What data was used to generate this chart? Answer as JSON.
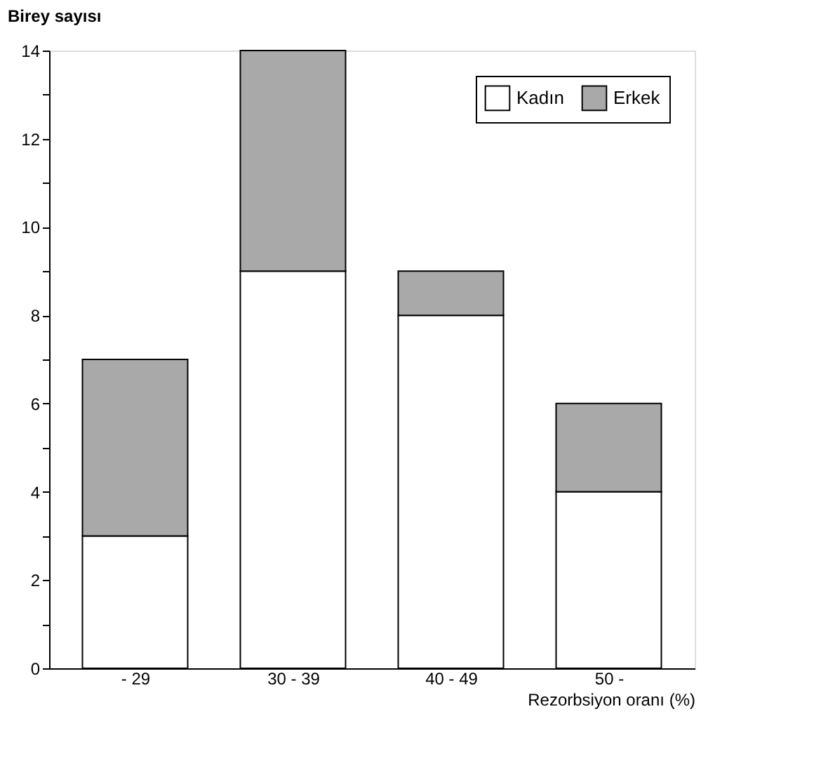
{
  "chart_data": {
    "type": "bar",
    "stacked": true,
    "xlabel": "Rezorbsiyon oranı (%)",
    "ylabel": "Birey sayısı",
    "categories": [
      "- 29",
      "30 - 39",
      "40 - 49",
      "50 -"
    ],
    "series": [
      {
        "name": "Kadın",
        "color": "#ffffff",
        "values": [
          3,
          9,
          8,
          4
        ]
      },
      {
        "name": "Erkek",
        "color": "#a9a9a9",
        "values": [
          4,
          5,
          1,
          2
        ]
      }
    ],
    "ylim": [
      0,
      14
    ],
    "yticks": [
      0,
      {
        "value": 1,
        "label": null
      },
      2,
      {
        "value": 3,
        "label": null
      },
      4,
      {
        "value": 5,
        "label": null
      },
      6,
      {
        "value": 7,
        "label": null
      },
      8,
      {
        "value": 9,
        "label": null
      },
      10,
      {
        "value": 11,
        "label": null
      },
      12,
      {
        "value": 13,
        "label": null
      },
      14
    ],
    "grid": false,
    "legend": "top right"
  }
}
